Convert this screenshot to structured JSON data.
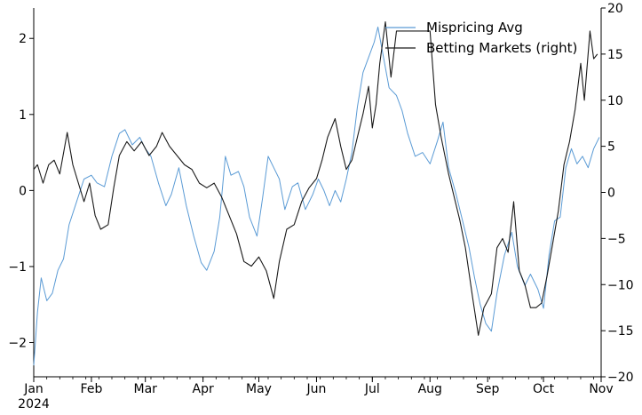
{
  "chart_data": {
    "type": "line",
    "title": "",
    "xlabel": "",
    "ylabel": "",
    "y2label": "",
    "x_ticks": [
      "Jan",
      "Feb",
      "Mar",
      "Apr",
      "May",
      "Jun",
      "Jul",
      "Aug",
      "Sep",
      "Oct",
      "Nov"
    ],
    "x_year_label": "2024",
    "x_range": [
      "2024-01-01",
      "2024-11-01"
    ],
    "ylim": [
      -2.45,
      2.4
    ],
    "y_ticks": [
      2,
      1,
      0,
      -1,
      -2
    ],
    "y_tick_labels": [
      "2",
      "1",
      "0",
      "−1",
      "−2"
    ],
    "y2lim": [
      -20,
      20
    ],
    "y2_ticks": [
      20,
      15,
      10,
      5,
      0,
      -5,
      -10,
      -15,
      -20
    ],
    "y2_tick_labels": [
      "20",
      "15",
      "10",
      "5",
      "0",
      "−5",
      "−10",
      "−15",
      "−20"
    ],
    "legend_placement": "top-right",
    "grid": false,
    "series": [
      {
        "name": "Mispricing Avg",
        "axis": "left",
        "color": "#5b9bd5",
        "points": [
          [
            "2024-01-01",
            -2.3
          ],
          [
            "2024-01-03",
            -1.6
          ],
          [
            "2024-01-05",
            -1.15
          ],
          [
            "2024-01-08",
            -1.45
          ],
          [
            "2024-01-11",
            -1.35
          ],
          [
            "2024-01-14",
            -1.05
          ],
          [
            "2024-01-17",
            -0.9
          ],
          [
            "2024-01-20",
            -0.45
          ],
          [
            "2024-01-24",
            -0.15
          ],
          [
            "2024-01-28",
            0.15
          ],
          [
            "2024-02-01",
            0.2
          ],
          [
            "2024-02-04",
            0.1
          ],
          [
            "2024-02-08",
            0.05
          ],
          [
            "2024-02-12",
            0.45
          ],
          [
            "2024-02-16",
            0.75
          ],
          [
            "2024-02-19",
            0.8
          ],
          [
            "2024-02-23",
            0.6
          ],
          [
            "2024-02-27",
            0.7
          ],
          [
            "2024-03-01",
            0.55
          ],
          [
            "2024-03-04",
            0.45
          ],
          [
            "2024-03-08",
            0.1
          ],
          [
            "2024-03-12",
            -0.2
          ],
          [
            "2024-03-15",
            -0.05
          ],
          [
            "2024-03-19",
            0.3
          ],
          [
            "2024-03-23",
            -0.2
          ],
          [
            "2024-03-27",
            -0.6
          ],
          [
            "2024-03-31",
            -0.95
          ],
          [
            "2024-04-03",
            -1.05
          ],
          [
            "2024-04-07",
            -0.8
          ],
          [
            "2024-04-10",
            -0.35
          ],
          [
            "2024-04-13",
            0.45
          ],
          [
            "2024-04-16",
            0.2
          ],
          [
            "2024-04-20",
            0.25
          ],
          [
            "2024-04-23",
            0.05
          ],
          [
            "2024-04-26",
            -0.35
          ],
          [
            "2024-04-30",
            -0.6
          ],
          [
            "2024-05-03",
            -0.1
          ],
          [
            "2024-05-06",
            0.45
          ],
          [
            "2024-05-09",
            0.3
          ],
          [
            "2024-05-12",
            0.15
          ],
          [
            "2024-05-15",
            -0.25
          ],
          [
            "2024-05-19",
            0.05
          ],
          [
            "2024-05-22",
            0.1
          ],
          [
            "2024-05-26",
            -0.25
          ],
          [
            "2024-05-30",
            -0.05
          ],
          [
            "2024-06-02",
            0.15
          ],
          [
            "2024-06-05",
            0.0
          ],
          [
            "2024-06-08",
            -0.2
          ],
          [
            "2024-06-11",
            0.0
          ],
          [
            "2024-06-14",
            -0.15
          ],
          [
            "2024-06-17",
            0.15
          ],
          [
            "2024-06-20",
            0.5
          ],
          [
            "2024-06-23",
            1.1
          ],
          [
            "2024-06-26",
            1.55
          ],
          [
            "2024-06-29",
            1.75
          ],
          [
            "2024-07-02",
            1.95
          ],
          [
            "2024-07-04",
            2.15
          ],
          [
            "2024-07-07",
            1.75
          ],
          [
            "2024-07-10",
            1.35
          ],
          [
            "2024-07-14",
            1.25
          ],
          [
            "2024-07-17",
            1.05
          ],
          [
            "2024-07-20",
            0.75
          ],
          [
            "2024-07-24",
            0.45
          ],
          [
            "2024-07-28",
            0.5
          ],
          [
            "2024-08-01",
            0.35
          ],
          [
            "2024-08-05",
            0.65
          ],
          [
            "2024-08-08",
            0.9
          ],
          [
            "2024-08-11",
            0.3
          ],
          [
            "2024-08-15",
            -0.05
          ],
          [
            "2024-08-19",
            -0.45
          ],
          [
            "2024-08-22",
            -0.75
          ],
          [
            "2024-08-25",
            -1.15
          ],
          [
            "2024-08-28",
            -1.5
          ],
          [
            "2024-08-31",
            -1.75
          ],
          [
            "2024-09-03",
            -1.85
          ],
          [
            "2024-09-06",
            -1.35
          ],
          [
            "2024-09-10",
            -0.85
          ],
          [
            "2024-09-14",
            -0.55
          ],
          [
            "2024-09-17",
            -1.0
          ],
          [
            "2024-09-21",
            -1.25
          ],
          [
            "2024-09-24",
            -1.1
          ],
          [
            "2024-09-28",
            -1.3
          ],
          [
            "2024-10-01",
            -1.55
          ],
          [
            "2024-10-04",
            -0.85
          ],
          [
            "2024-10-07",
            -0.4
          ],
          [
            "2024-10-10",
            -0.35
          ],
          [
            "2024-10-13",
            0.3
          ],
          [
            "2024-10-16",
            0.55
          ],
          [
            "2024-10-19",
            0.35
          ],
          [
            "2024-10-22",
            0.45
          ],
          [
            "2024-10-25",
            0.3
          ],
          [
            "2024-10-28",
            0.55
          ],
          [
            "2024-10-31",
            0.7
          ]
        ]
      },
      {
        "name": "Betting Markets (right)",
        "axis": "right",
        "color": "#1a1a1a",
        "points": [
          [
            "2024-01-01",
            2.5
          ],
          [
            "2024-01-03",
            3.0
          ],
          [
            "2024-01-06",
            1.0
          ],
          [
            "2024-01-09",
            3.0
          ],
          [
            "2024-01-12",
            3.5
          ],
          [
            "2024-01-15",
            2.0
          ],
          [
            "2024-01-19",
            6.5
          ],
          [
            "2024-01-22",
            3.0
          ],
          [
            "2024-01-25",
            1.0
          ],
          [
            "2024-01-28",
            -1.0
          ],
          [
            "2024-01-31",
            1.0
          ],
          [
            "2024-02-03",
            -2.5
          ],
          [
            "2024-02-06",
            -4.0
          ],
          [
            "2024-02-10",
            -3.5
          ],
          [
            "2024-02-13",
            0.5
          ],
          [
            "2024-02-16",
            4.0
          ],
          [
            "2024-02-20",
            5.5
          ],
          [
            "2024-02-24",
            4.5
          ],
          [
            "2024-02-28",
            5.5
          ],
          [
            "2024-03-03",
            4.0
          ],
          [
            "2024-03-07",
            5.0
          ],
          [
            "2024-03-10",
            6.5
          ],
          [
            "2024-03-14",
            5.0
          ],
          [
            "2024-03-18",
            4.0
          ],
          [
            "2024-03-22",
            3.0
          ],
          [
            "2024-03-26",
            2.5
          ],
          [
            "2024-03-30",
            1.0
          ],
          [
            "2024-04-03",
            0.5
          ],
          [
            "2024-04-07",
            1.0
          ],
          [
            "2024-04-11",
            -0.5
          ],
          [
            "2024-04-15",
            -2.5
          ],
          [
            "2024-04-19",
            -4.5
          ],
          [
            "2024-04-23",
            -7.5
          ],
          [
            "2024-04-27",
            -8.0
          ],
          [
            "2024-05-01",
            -7.0
          ],
          [
            "2024-05-05",
            -8.5
          ],
          [
            "2024-05-09",
            -11.5
          ],
          [
            "2024-05-12",
            -7.5
          ],
          [
            "2024-05-16",
            -4.0
          ],
          [
            "2024-05-20",
            -3.5
          ],
          [
            "2024-05-24",
            -1.0
          ],
          [
            "2024-05-28",
            0.5
          ],
          [
            "2024-06-01",
            1.5
          ],
          [
            "2024-06-04",
            3.5
          ],
          [
            "2024-06-07",
            6.0
          ],
          [
            "2024-06-11",
            8.0
          ],
          [
            "2024-06-14",
            5.0
          ],
          [
            "2024-06-17",
            2.5
          ],
          [
            "2024-06-20",
            3.5
          ],
          [
            "2024-06-23",
            6.0
          ],
          [
            "2024-06-26",
            8.5
          ],
          [
            "2024-06-29",
            11.5
          ],
          [
            "2024-07-01",
            7.0
          ],
          [
            "2024-07-03",
            9.5
          ],
          [
            "2024-07-05",
            14.0
          ],
          [
            "2024-07-08",
            18.5
          ],
          [
            "2024-07-11",
            12.5
          ],
          [
            "2024-07-14",
            17.5
          ],
          [
            "2024-08-01",
            17.5
          ],
          [
            "2024-08-04",
            9.5
          ],
          [
            "2024-08-07",
            6.0
          ],
          [
            "2024-08-11",
            2.0
          ],
          [
            "2024-08-14",
            -0.5
          ],
          [
            "2024-08-17",
            -3.0
          ],
          [
            "2024-08-20",
            -6.0
          ],
          [
            "2024-08-24",
            -11.5
          ],
          [
            "2024-08-27",
            -15.5
          ],
          [
            "2024-08-30",
            -12.5
          ],
          [
            "2024-09-03",
            -11.0
          ],
          [
            "2024-09-06",
            -6.0
          ],
          [
            "2024-09-09",
            -5.0
          ],
          [
            "2024-09-12",
            -6.5
          ],
          [
            "2024-09-15",
            -1.0
          ],
          [
            "2024-09-18",
            -8.5
          ],
          [
            "2024-09-21",
            -10.0
          ],
          [
            "2024-09-24",
            -12.5
          ],
          [
            "2024-09-27",
            -12.5
          ],
          [
            "2024-09-30",
            -12.0
          ],
          [
            "2024-10-03",
            -9.0
          ],
          [
            "2024-10-06",
            -5.5
          ],
          [
            "2024-10-09",
            -2.0
          ],
          [
            "2024-10-12",
            3.0
          ],
          [
            "2024-10-15",
            5.5
          ],
          [
            "2024-10-18",
            9.0
          ],
          [
            "2024-10-21",
            14.0
          ],
          [
            "2024-10-23",
            10.0
          ],
          [
            "2024-10-26",
            17.5
          ],
          [
            "2024-10-28",
            14.5
          ],
          [
            "2024-10-30",
            15.0
          ]
        ]
      }
    ]
  }
}
